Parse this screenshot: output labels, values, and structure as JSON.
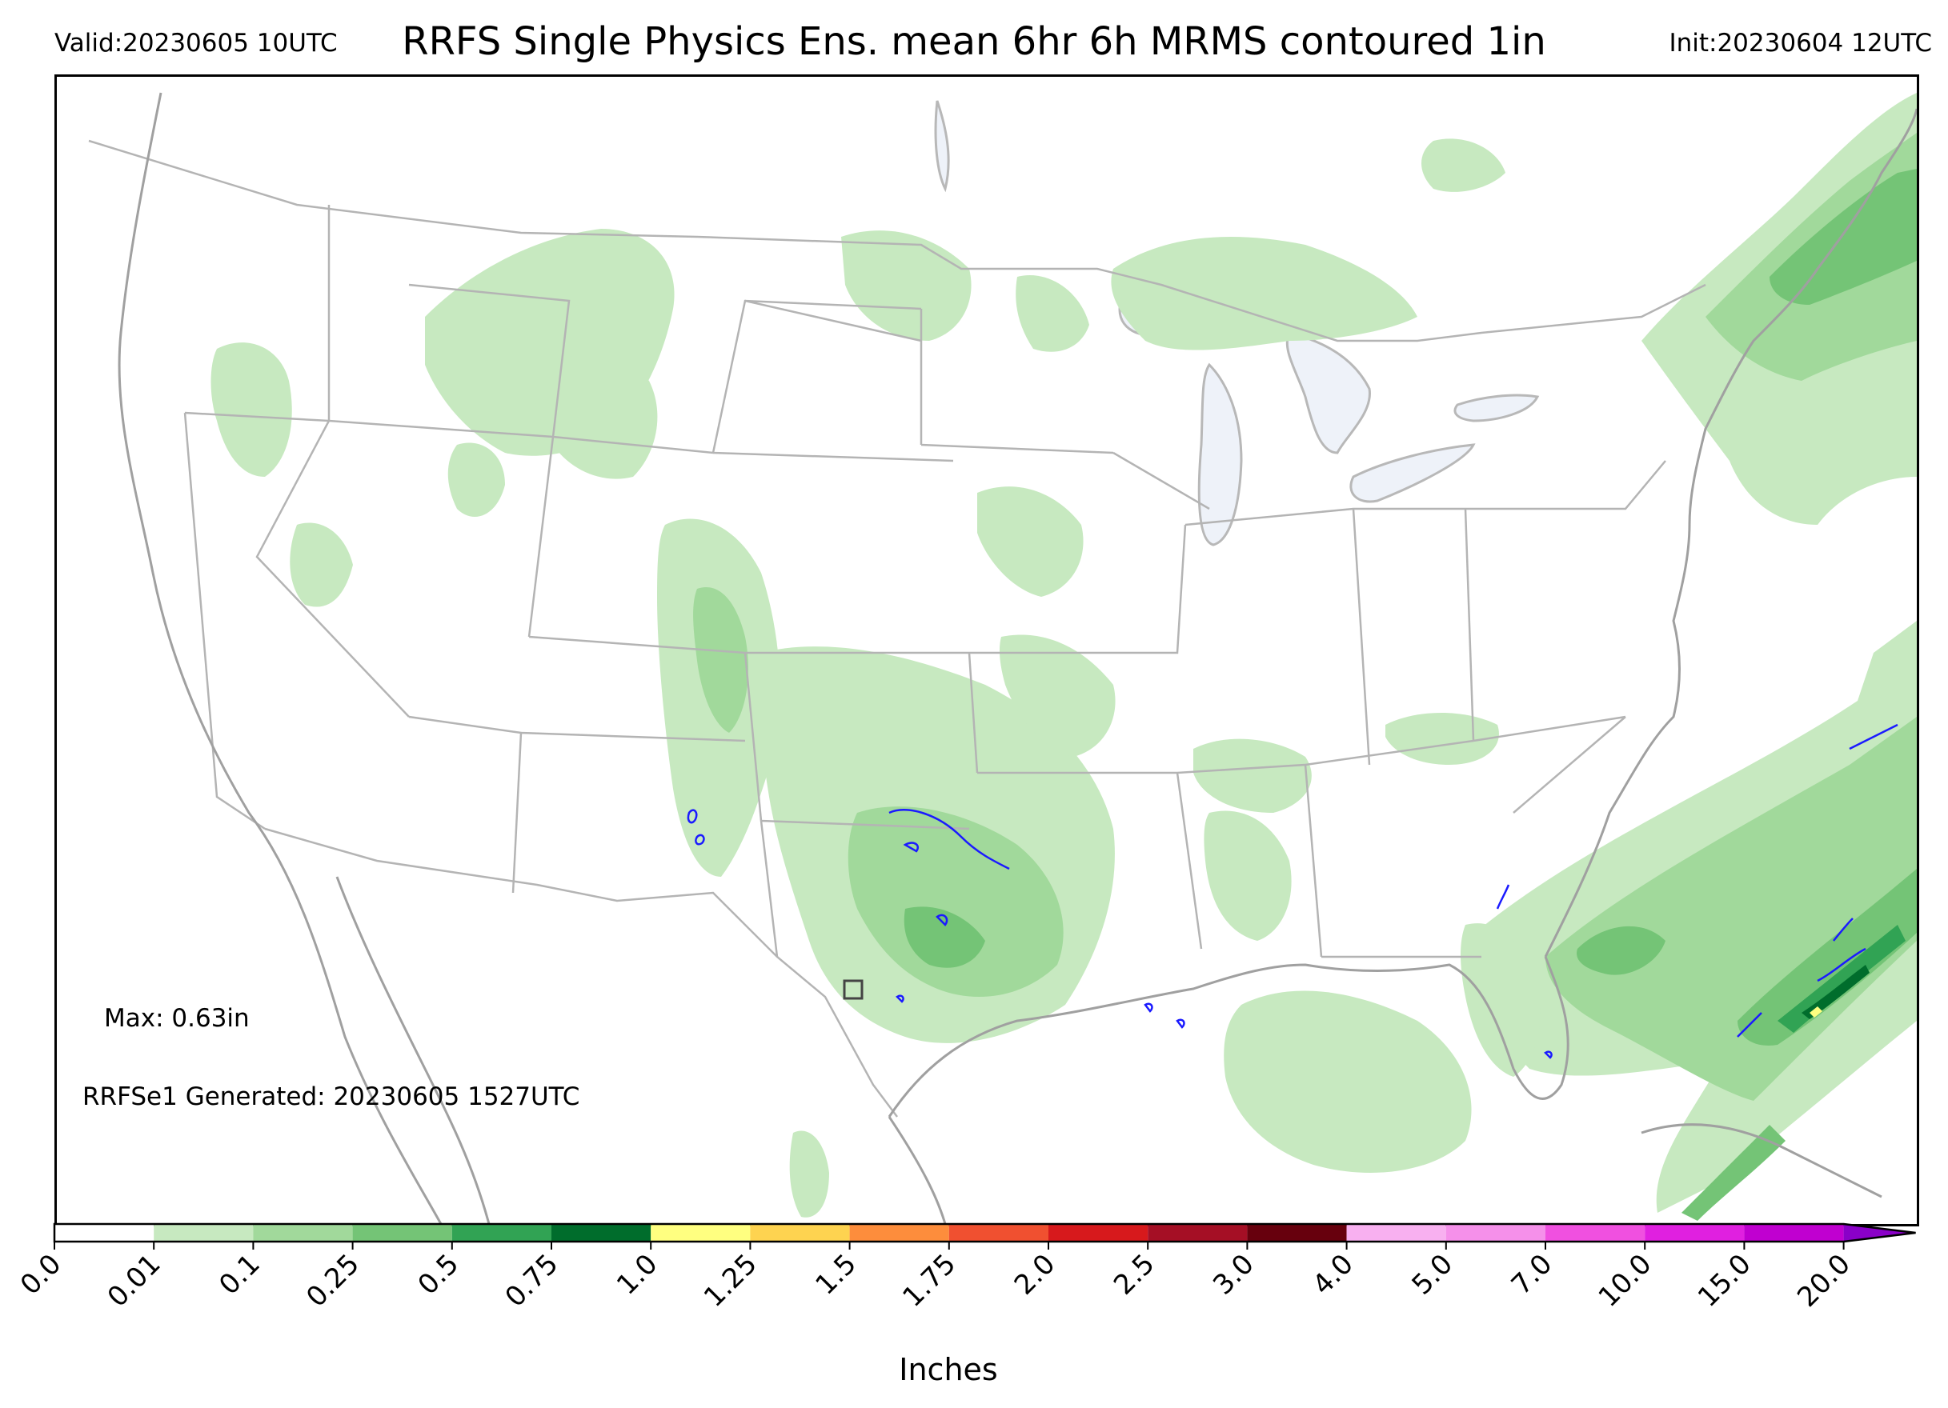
{
  "header": {
    "valid": "Valid:20230605 10UTC",
    "title": "RRFS Single Physics Ens. mean 6hr 6h MRMS contoured 1in",
    "init": "Init:20230604 12UTC"
  },
  "annotations": {
    "max": "Max: 0.63in",
    "generated": "RRFSe1 Generated: 20230605 1527UTC"
  },
  "colorbar": {
    "title": "Inches",
    "ticks": [
      "0.0",
      "0.01",
      "0.1",
      "0.25",
      "0.5",
      "0.75",
      "1.0",
      "1.25",
      "1.5",
      "1.75",
      "2.0",
      "2.5",
      "3.0",
      "4.0",
      "5.0",
      "7.0",
      "10.0",
      "15.0",
      "20.0"
    ],
    "colors": [
      "#ffffff",
      "#c7e9c0",
      "#a1d99b",
      "#74c476",
      "#31a354",
      "#006d2c",
      "#ffff80",
      "#fed350",
      "#fd8d3c",
      "#f05030",
      "#d7191c",
      "#a50f25",
      "#67000d",
      "#f8b0f0",
      "#f590ea",
      "#f050e0",
      "#e020e0",
      "#c000d0",
      "#8a00c8"
    ]
  },
  "map_legend": {
    "contour_color": "#1a1aff",
    "contour_meaning": "6h MRMS contoured 1in"
  }
}
